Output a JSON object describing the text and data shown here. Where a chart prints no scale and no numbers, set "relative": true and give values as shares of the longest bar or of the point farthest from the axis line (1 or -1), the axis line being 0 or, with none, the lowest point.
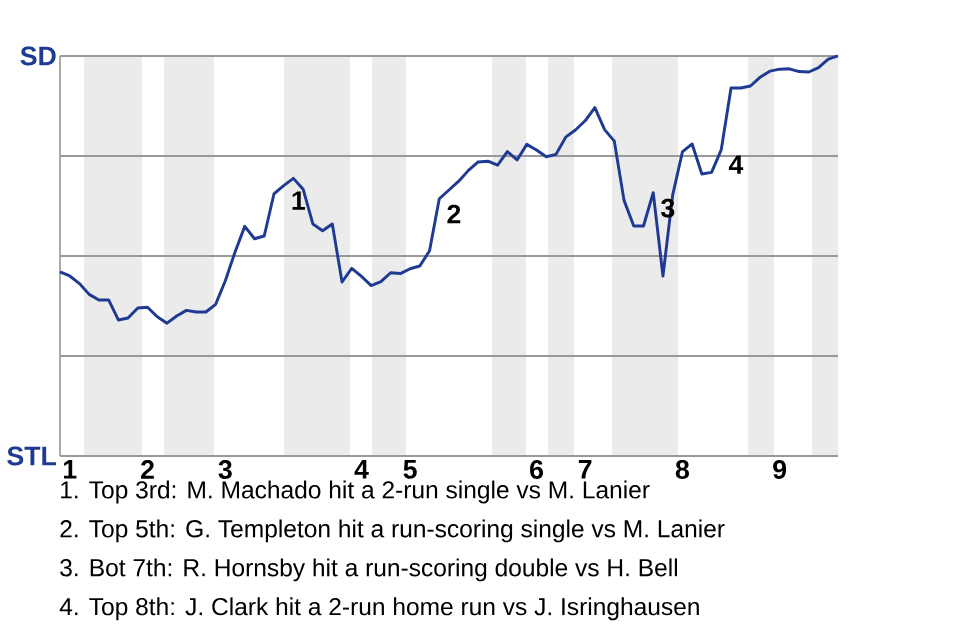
{
  "chart_data": {
    "type": "line",
    "relative": true,
    "categories": [
      null,
      "1",
      null,
      null,
      null,
      null,
      null,
      null,
      null,
      "2",
      null,
      null,
      null,
      null,
      null,
      null,
      null,
      "3",
      null,
      null,
      null,
      null,
      null,
      null,
      null,
      null,
      null,
      null,
      null,
      null,
      null,
      "4",
      null,
      null,
      null,
      null,
      "5",
      null,
      null,
      null,
      null,
      null,
      null,
      null,
      null,
      null,
      null,
      null,
      null,
      "6",
      null,
      null,
      null,
      null,
      "7",
      null,
      null,
      null,
      null,
      null,
      null,
      null,
      null,
      null,
      "8",
      null,
      null,
      null,
      null,
      null,
      null,
      null,
      null,
      null,
      "9",
      null,
      null,
      null,
      null,
      null,
      null
    ],
    "series": [
      {
        "color": "#1f3a93",
        "values": [
          0.46,
          0.45,
          0.431,
          0.404,
          0.39,
          0.39,
          0.34,
          0.345,
          0.37,
          0.372,
          0.348,
          0.332,
          0.35,
          0.364,
          0.36,
          0.36,
          0.379,
          0.438,
          0.51,
          0.574,
          0.543,
          0.55,
          0.655,
          0.676,
          0.694,
          0.667,
          0.58,
          0.563,
          0.58,
          0.435,
          0.469,
          0.449,
          0.426,
          0.436,
          0.458,
          0.456,
          0.468,
          0.475,
          0.513,
          0.643,
          0.665,
          0.687,
          0.714,
          0.735,
          0.737,
          0.727,
          0.761,
          0.74,
          0.779,
          0.765,
          0.748,
          0.754,
          0.797,
          0.815,
          0.838,
          0.871,
          0.816,
          0.787,
          0.639,
          0.575,
          0.575,
          0.658,
          0.45,
          0.652,
          0.76,
          0.78,
          0.705,
          0.709,
          0.766,
          0.92,
          0.92,
          0.925,
          0.947,
          0.962,
          0.967,
          0.968,
          0.961,
          0.96,
          0.971,
          0.992,
          1
        ]
      }
    ],
    "ref_lines": [
      {
        "axis": "y",
        "value": 1,
        "label": "SD",
        "color": "#999999"
      },
      {
        "axis": "y",
        "value": 0.75,
        "color": "#999999"
      },
      {
        "axis": "y",
        "value": 0.5,
        "color": "#999999"
      },
      {
        "axis": "y",
        "value": 0.25,
        "color": "#999999"
      },
      {
        "axis": "y",
        "value": 0,
        "label": "STL",
        "color": "#999999"
      }
    ],
    "annotations": [
      {
        "text": "1",
        "y": 0.676
      },
      {
        "text": "2",
        "y": 0.643
      },
      {
        "text": "3",
        "y": 0.658
      },
      {
        "text": "4",
        "y": 0.766
      },
      "1. Top 3rd: M. Machado hit a 2-run single vs M. Lanier",
      "2. Top 5th: G. Templeton hit a run-scoring single vs M. Lanier",
      "3. Bot 7th: R. Hornsby hit a run-scoring double vs H. Bell",
      "4. Top 8th: J. Clark hit a 2-run home run vs J. Isringhausen"
    ]
  }
}
